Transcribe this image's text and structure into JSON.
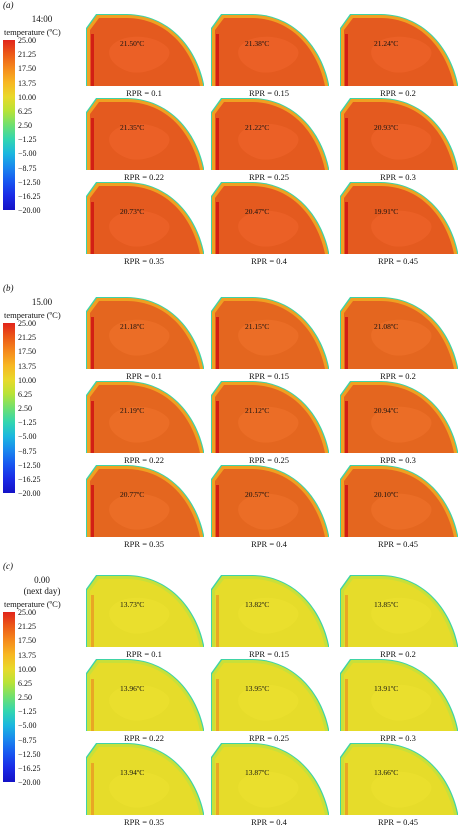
{
  "colorbar": {
    "title": "temperature (ºC)",
    "ticks": [
      "25.00",
      "21.25",
      "17.50",
      "13.75",
      "10.00",
      "6.25",
      "2.50",
      "−1.25",
      "−5.00",
      "−8.75",
      "−12.50",
      "−16.25",
      "−20.00"
    ],
    "colors": [
      "#e1241b",
      "#ec5a18",
      "#f58a1c",
      "#f7b722",
      "#e9d92a",
      "#b8e336",
      "#6fe070",
      "#32d6b0",
      "#1bb7df",
      "#1a87ee",
      "#1855f0",
      "#1a2ae6",
      "#1412c6"
    ]
  },
  "panels": [
    {
      "label": "(a)",
      "time_lines": [
        "14:00"
      ],
      "fill": "#e45a1f",
      "variant": "warm",
      "cells": [
        {
          "temp": "21.50ºC",
          "rpr": "RPR = 0.1"
        },
        {
          "temp": "21.38ºC",
          "rpr": "RPR = 0.15"
        },
        {
          "temp": "21.24ºC",
          "rpr": "RPR = 0.2"
        },
        {
          "temp": "21.35ºC",
          "rpr": "RPR = 0.22"
        },
        {
          "temp": "21.22ºC",
          "rpr": "RPR = 0.25"
        },
        {
          "temp": "20.93ºC",
          "rpr": "RPR = 0.3"
        },
        {
          "temp": "20.73ºC",
          "rpr": "RPR = 0.35"
        },
        {
          "temp": "20.47ºC",
          "rpr": "RPR = 0.4"
        },
        {
          "temp": "19.91ºC",
          "rpr": "RPR = 0.45"
        }
      ]
    },
    {
      "label": "(b)",
      "time_lines": [
        "15.00"
      ],
      "fill": "#e4661f",
      "variant": "warm",
      "cells": [
        {
          "temp": "21.18ºC",
          "rpr": "RPR = 0.1"
        },
        {
          "temp": "21.15ºC",
          "rpr": "RPR = 0.15"
        },
        {
          "temp": "21.08ºC",
          "rpr": "RPR = 0.2"
        },
        {
          "temp": "21.19ºC",
          "rpr": "RPR = 0.22"
        },
        {
          "temp": "21.12ºC",
          "rpr": "RPR = 0.25"
        },
        {
          "temp": "20.94ºC",
          "rpr": "RPR = 0.3"
        },
        {
          "temp": "20.77ºC",
          "rpr": "RPR = 0.35"
        },
        {
          "temp": "20.57ºC",
          "rpr": "RPR = 0.4"
        },
        {
          "temp": "20.10ºC",
          "rpr": "RPR = 0.45"
        }
      ]
    },
    {
      "label": "(c)",
      "time_lines": [
        "0.00",
        "(next day)"
      ],
      "fill": "#e6dc2a",
      "variant": "cool",
      "cells": [
        {
          "temp": "13.73ºC",
          "rpr": "RPR = 0.1"
        },
        {
          "temp": "13.82ºC",
          "rpr": "RPR = 0.15"
        },
        {
          "temp": "13.85ºC",
          "rpr": "RPR = 0.2"
        },
        {
          "temp": "13.96ºC",
          "rpr": "RPR = 0.22"
        },
        {
          "temp": "13.95ºC",
          "rpr": "RPR = 0.25"
        },
        {
          "temp": "13.91ºC",
          "rpr": "RPR = 0.3"
        },
        {
          "temp": "13.94ºC",
          "rpr": "RPR = 0.35"
        },
        {
          "temp": "13.87ºC",
          "rpr": "RPR = 0.4"
        },
        {
          "temp": "13.66ºC",
          "rpr": "RPR = 0.45"
        }
      ]
    }
  ]
}
